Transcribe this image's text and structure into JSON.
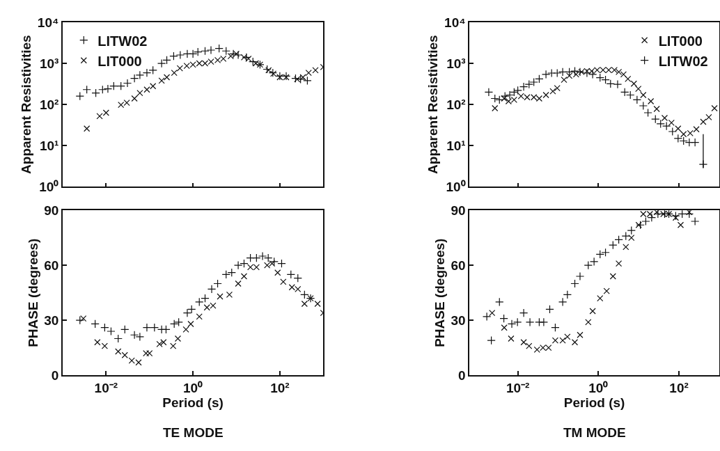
{
  "chart_data": [
    {
      "type": "scatter",
      "ylabel": "Apparent Resistivities",
      "log": "xy",
      "tick_labels": "y",
      "legend": "top left",
      "grid": false,
      "xlim": [
        0.001,
        1000
      ],
      "ylim": [
        1,
        10000
      ],
      "xticks": [
        0.01,
        1,
        100
      ],
      "yticks": [
        {
          "value": 1,
          "label": "10⁰"
        },
        {
          "value": 10,
          "label": "10¹"
        },
        {
          "value": 100,
          "label": "10²"
        },
        {
          "value": 1000,
          "label": "10³"
        },
        {
          "value": 10000,
          "label": "10⁴"
        }
      ],
      "series": [
        {
          "name": "LITW02",
          "color": "#111111",
          "marker": "cross",
          "x": [
            0.0025,
            0.0036,
            0.0058,
            0.0083,
            0.011,
            0.015,
            0.022,
            0.031,
            0.045,
            0.06,
            0.087,
            0.12,
            0.19,
            0.25,
            0.36,
            0.51,
            0.74,
            1.0,
            1.3,
            1.9,
            2.6,
            4.0,
            5.8,
            8.5,
            11,
            17,
            24,
            35,
            51,
            69,
            100,
            140,
            230,
            300,
            430
          ],
          "values": [
            160,
            230,
            190,
            230,
            240,
            280,
            280,
            330,
            430,
            520,
            590,
            680,
            1000,
            1200,
            1500,
            1600,
            1700,
            1700,
            1900,
            2000,
            2100,
            2300,
            2000,
            1700,
            1600,
            1400,
            1100,
            930,
            720,
            590,
            490,
            490,
            430,
            410,
            380
          ]
        },
        {
          "name": "LIT000",
          "color": "#111111",
          "marker": "x",
          "x": [
            0.0036,
            0.0071,
            0.01,
            0.022,
            0.03,
            0.045,
            0.06,
            0.087,
            0.12,
            0.19,
            0.25,
            0.37,
            0.5,
            0.72,
            1.0,
            1.4,
            1.9,
            2.6,
            3.7,
            5.0,
            7.4,
            10,
            15,
            19,
            28,
            35,
            55,
            71,
            100,
            140,
            250,
            340,
            460,
            660,
            1000
          ],
          "values": [
            26,
            52,
            63,
            98,
            110,
            140,
            190,
            230,
            280,
            380,
            460,
            590,
            760,
            870,
            930,
            1000,
            1000,
            1100,
            1200,
            1300,
            1500,
            1700,
            1400,
            1300,
            1000,
            930,
            680,
            560,
            460,
            460,
            410,
            460,
            590,
            680,
            810
          ]
        }
      ]
    },
    {
      "type": "scatter",
      "ylabel": "Apparent Resistivities",
      "log": "xy",
      "tick_labels": "y",
      "legend": "top right",
      "grid": false,
      "xlim": [
        0.00063,
        1000
      ],
      "ylim": [
        1,
        10000
      ],
      "xticks": [
        0.01,
        1,
        100
      ],
      "yticks": [
        {
          "value": 1,
          "label": "10⁰"
        },
        {
          "value": 10,
          "label": "10¹"
        },
        {
          "value": 100,
          "label": "10²"
        },
        {
          "value": 1000,
          "label": "10³"
        },
        {
          "value": 10000,
          "label": "10⁴"
        }
      ],
      "series": [
        {
          "name": "LIT000",
          "color": "#111111",
          "marker": "x",
          "x": [
            0.0027,
            0.0046,
            0.0059,
            0.0081,
            0.012,
            0.017,
            0.025,
            0.034,
            0.05,
            0.074,
            0.095,
            0.14,
            0.19,
            0.28,
            0.38,
            0.52,
            0.68,
            0.93,
            1.3,
            1.8,
            2.5,
            3.2,
            4.2,
            5.4,
            7.6,
            9.8,
            13,
            20,
            28,
            44,
            65,
            95,
            130,
            190,
            270,
            400,
            550,
            760
          ],
          "values": [
            81,
            140,
            120,
            130,
            160,
            150,
            150,
            140,
            170,
            210,
            250,
            400,
            500,
            540,
            620,
            650,
            650,
            690,
            690,
            690,
            690,
            620,
            540,
            420,
            320,
            240,
            170,
            120,
            78,
            47,
            36,
            26,
            19,
            20,
            25,
            38,
            49,
            81
          ]
        },
        {
          "name": "LITW02",
          "color": "#111111",
          "marker": "cross",
          "x": [
            0.0019,
            0.0027,
            0.0035,
            0.0048,
            0.0063,
            0.0081,
            0.01,
            0.014,
            0.019,
            0.025,
            0.034,
            0.05,
            0.069,
            0.095,
            0.13,
            0.19,
            0.26,
            0.35,
            0.52,
            0.72,
            1.1,
            1.5,
            2.0,
            3.0,
            4.5,
            6.2,
            9.1,
            13,
            17,
            26,
            35,
            49,
            69,
            95,
            130,
            180,
            250,
            400
          ],
          "values": [
            200,
            140,
            130,
            160,
            170,
            200,
            220,
            270,
            310,
            350,
            420,
            540,
            580,
            580,
            620,
            620,
            650,
            620,
            580,
            540,
            450,
            400,
            320,
            310,
            200,
            170,
            130,
            93,
            63,
            44,
            34,
            30,
            22,
            15,
            13,
            12,
            12,
            3.5
          ],
          "errors": [
            null,
            null,
            null,
            null,
            null,
            null,
            null,
            null,
            null,
            null,
            null,
            null,
            null,
            null,
            null,
            null,
            null,
            null,
            null,
            null,
            null,
            null,
            null,
            null,
            null,
            null,
            null,
            null,
            null,
            null,
            null,
            null,
            null,
            null,
            null,
            null,
            null,
            [
              2.9,
              19
            ]
          ]
        }
      ]
    },
    {
      "type": "scatter",
      "ylabel": "PHASE (degrees)",
      "xlabel": "Period (s)",
      "annotations": [
        "TE MODE"
      ],
      "log": "x",
      "grid": false,
      "xlim": [
        0.001,
        1000
      ],
      "ylim": [
        0,
        90
      ],
      "yticks": [
        0,
        30,
        60,
        90
      ],
      "xticks": [
        {
          "value": 0.01,
          "label": "10⁻²"
        },
        {
          "value": 1,
          "label": "10⁰"
        },
        {
          "value": 100,
          "label": "10²"
        }
      ],
      "series": [
        {
          "color": "#111111",
          "marker": "cross",
          "x": [
            0.0025,
            0.0056,
            0.0093,
            0.013,
            0.019,
            0.027,
            0.045,
            0.06,
            0.087,
            0.13,
            0.19,
            0.24,
            0.37,
            0.47,
            0.74,
            0.93,
            1.4,
            1.9,
            2.7,
            3.7,
            5.8,
            7.8,
            11,
            15,
            21,
            29,
            40,
            54,
            74,
            110,
            180,
            260,
            370,
            510
          ],
          "values": [
            30,
            28,
            26,
            24,
            20,
            25,
            22,
            21,
            26,
            26,
            25,
            25,
            28,
            29,
            34,
            36,
            40,
            42,
            47,
            50,
            55,
            56,
            60,
            61,
            64,
            64,
            65,
            64,
            62,
            61,
            55,
            53,
            44,
            42
          ]
        },
        {
          "color": "#111111",
          "marker": "x",
          "x": [
            0.003,
            0.0063,
            0.0093,
            0.019,
            0.027,
            0.039,
            0.056,
            0.083,
            0.1,
            0.17,
            0.21,
            0.35,
            0.45,
            0.69,
            0.89,
            1.4,
            2.1,
            2.9,
            4.2,
            6.9,
            11,
            15,
            21,
            29,
            51,
            66,
            89,
            120,
            190,
            260,
            370,
            510,
            740,
            1000
          ],
          "values": [
            31,
            18,
            16,
            13,
            11,
            8,
            7,
            12,
            12,
            17,
            18,
            16,
            20,
            25,
            28,
            32,
            37,
            38,
            43,
            44,
            50,
            54,
            59,
            59,
            60,
            61,
            56,
            51,
            48,
            47,
            39,
            42,
            39,
            34
          ]
        }
      ]
    },
    {
      "type": "scatter",
      "ylabel": "PHASE (degrees)",
      "xlabel": "Period (s)",
      "annotations": [
        "TM MODE"
      ],
      "log": "x",
      "grid": false,
      "xlim": [
        0.00063,
        1000
      ],
      "ylim": [
        0,
        90
      ],
      "yticks": [
        0,
        30,
        60,
        90
      ],
      "xticks": [
        {
          "value": 0.01,
          "label": "10⁻²"
        },
        {
          "value": 1,
          "label": "10⁰"
        },
        {
          "value": 100,
          "label": "10²"
        }
      ],
      "series": [
        {
          "color": "#111111",
          "marker": "cross",
          "x": [
            0.0017,
            0.0022,
            0.0035,
            0.0045,
            0.0071,
            0.0098,
            0.014,
            0.02,
            0.034,
            0.044,
            0.062,
            0.085,
            0.13,
            0.17,
            0.26,
            0.35,
            0.56,
            0.78,
            1.1,
            1.5,
            2.3,
            3.2,
            4.8,
            6.6,
            11,
            15,
            21,
            30,
            44,
            56,
            83,
            120,
            180,
            250
          ],
          "values": [
            32,
            19,
            40,
            31,
            28,
            29,
            34,
            29,
            29,
            29,
            36,
            26,
            40,
            44,
            50,
            54,
            60,
            62,
            66,
            67,
            71,
            74,
            76,
            79,
            82,
            84,
            86,
            88,
            88,
            88,
            87,
            88,
            88,
            84
          ]
        },
        {
          "color": "#111111",
          "marker": "x",
          "x": [
            0.0023,
            0.0046,
            0.0068,
            0.014,
            0.019,
            0.03,
            0.042,
            0.058,
            0.085,
            0.13,
            0.17,
            0.26,
            0.35,
            0.56,
            0.72,
            1.1,
            1.6,
            2.3,
            3.2,
            4.8,
            6.6,
            10,
            13,
            19,
            28,
            41,
            56,
            83,
            110,
            180
          ],
          "values": [
            34,
            26,
            20,
            18,
            16,
            14,
            15,
            15,
            19,
            19,
            21,
            18,
            22,
            29,
            35,
            42,
            46,
            54,
            61,
            70,
            75,
            82,
            88,
            88,
            89,
            88,
            88,
            86,
            82,
            89
          ]
        }
      ]
    }
  ]
}
